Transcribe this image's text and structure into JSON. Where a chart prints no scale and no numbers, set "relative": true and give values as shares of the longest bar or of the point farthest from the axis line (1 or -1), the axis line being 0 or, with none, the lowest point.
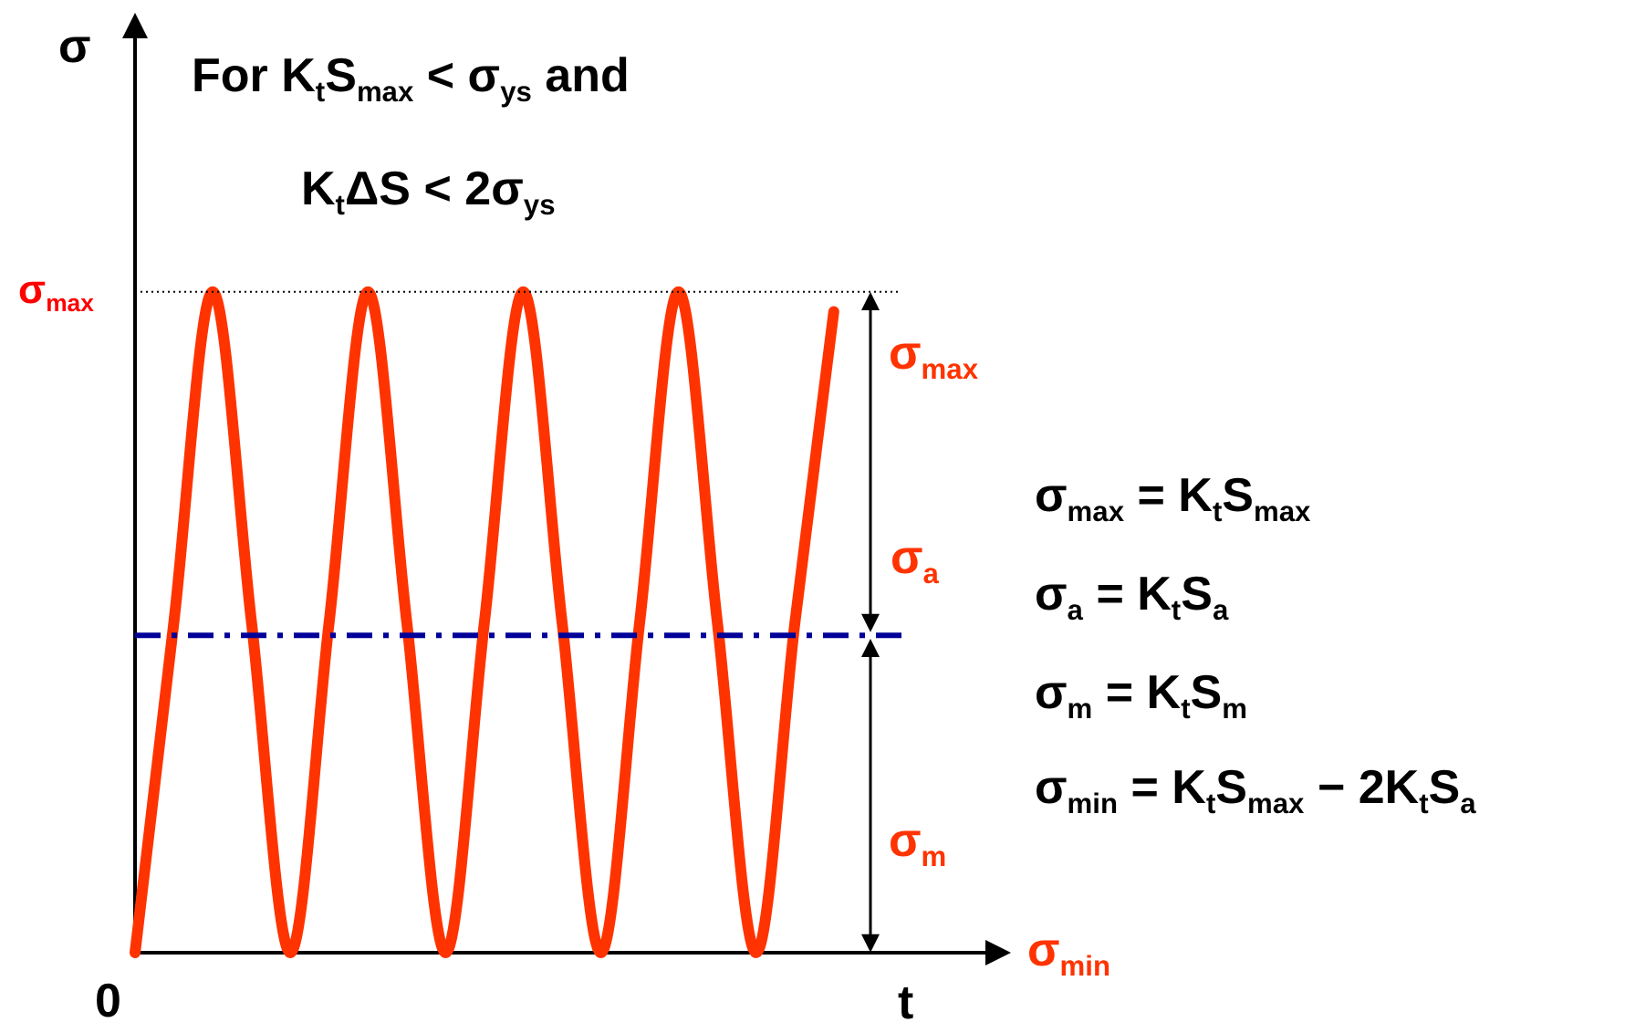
{
  "chart_data": {
    "type": "line",
    "relative": true,
    "xlabel": "t",
    "ylabel": "σ",
    "categories": [
      null,
      null,
      null,
      null,
      null,
      null,
      null,
      null,
      null,
      null,
      null,
      null,
      null,
      null,
      null,
      null,
      null,
      null,
      null,
      null,
      null,
      null,
      null
    ],
    "series": [
      {
        "color": "#ff3300",
        "values": [
          0,
          0.5,
          1,
          0.5,
          0,
          0.5,
          1,
          0.5,
          0,
          0.5,
          1,
          0.5,
          0,
          0.5,
          1,
          0.5,
          0,
          0.5,
          0.97,
          null,
          null,
          null,
          null
        ]
      }
    ],
    "ref_lines": [
      {
        "axis": "y",
        "value": 1,
        "label": "σ$_{max}$",
        "line_style": "dotted",
        "color": "#000000"
      },
      {
        "axis": "y",
        "value": 0.48,
        "line_style": "dashed",
        "color": "#000099"
      }
    ],
    "annotations": [
      "For K$_{t}$S$_{max}$ < σ$_{ys}$ and",
      "K$_{t}$ΔS < 2σ$_{ys}$",
      "σ$_{max}$",
      "σ$_{a}$",
      "σ$_{m}$",
      "σ$_{min}$",
      "σ$_{max}$ = K$_{t}$S$_{max}$",
      "σ$_{a}$ = K$_{t}$S$_{a}$",
      "σ$_{m}$ = K$_{t}$S$_{m}$",
      "σ$_{min}$ = K$_{t}$S$_{max}$ − 2K$_{t}$S$_{a}$",
      "0"
    ],
    "marker": "none",
    "line_style": "solid",
    "grid": false,
    "legend": false
  }
}
